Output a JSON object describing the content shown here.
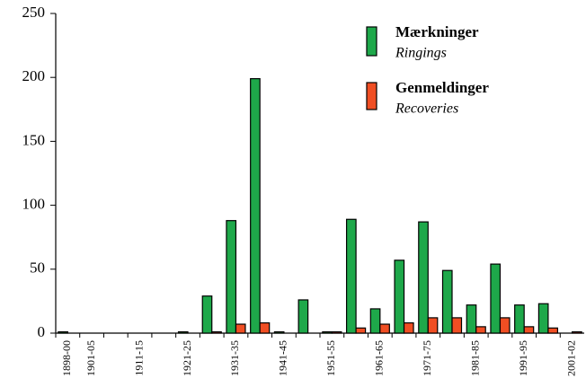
{
  "chart_data": {
    "type": "bar",
    "categories": [
      "1898-00",
      "1901-05",
      null,
      "1911-15",
      null,
      "1921-25",
      null,
      "1931-35",
      null,
      "1941-45",
      null,
      "1951-55",
      null,
      "1961-65",
      null,
      "1971-75",
      null,
      "1981-85",
      null,
      "1991-95",
      null,
      "2001-02"
    ],
    "series": [
      {
        "name": "Mærkninger",
        "translation": "Ringings",
        "color": "#1ea84a",
        "values": [
          1,
          0,
          0,
          0,
          0,
          1,
          29,
          88,
          199,
          1,
          26,
          1,
          89,
          19,
          57,
          87,
          49,
          22,
          54,
          22,
          23,
          0
        ]
      },
      {
        "name": "Genmeldinger",
        "translation": "Recoveries",
        "color": "#f04e23",
        "values": [
          0,
          0,
          0,
          0,
          0,
          0,
          1,
          7,
          8,
          0,
          0,
          1,
          4,
          7,
          8,
          12,
          12,
          5,
          12,
          5,
          4,
          1
        ]
      }
    ],
    "ylim": [
      0,
      250
    ],
    "yticks": [
      0,
      50,
      100,
      150,
      200,
      250
    ],
    "grid": false,
    "legend": "upper right"
  }
}
